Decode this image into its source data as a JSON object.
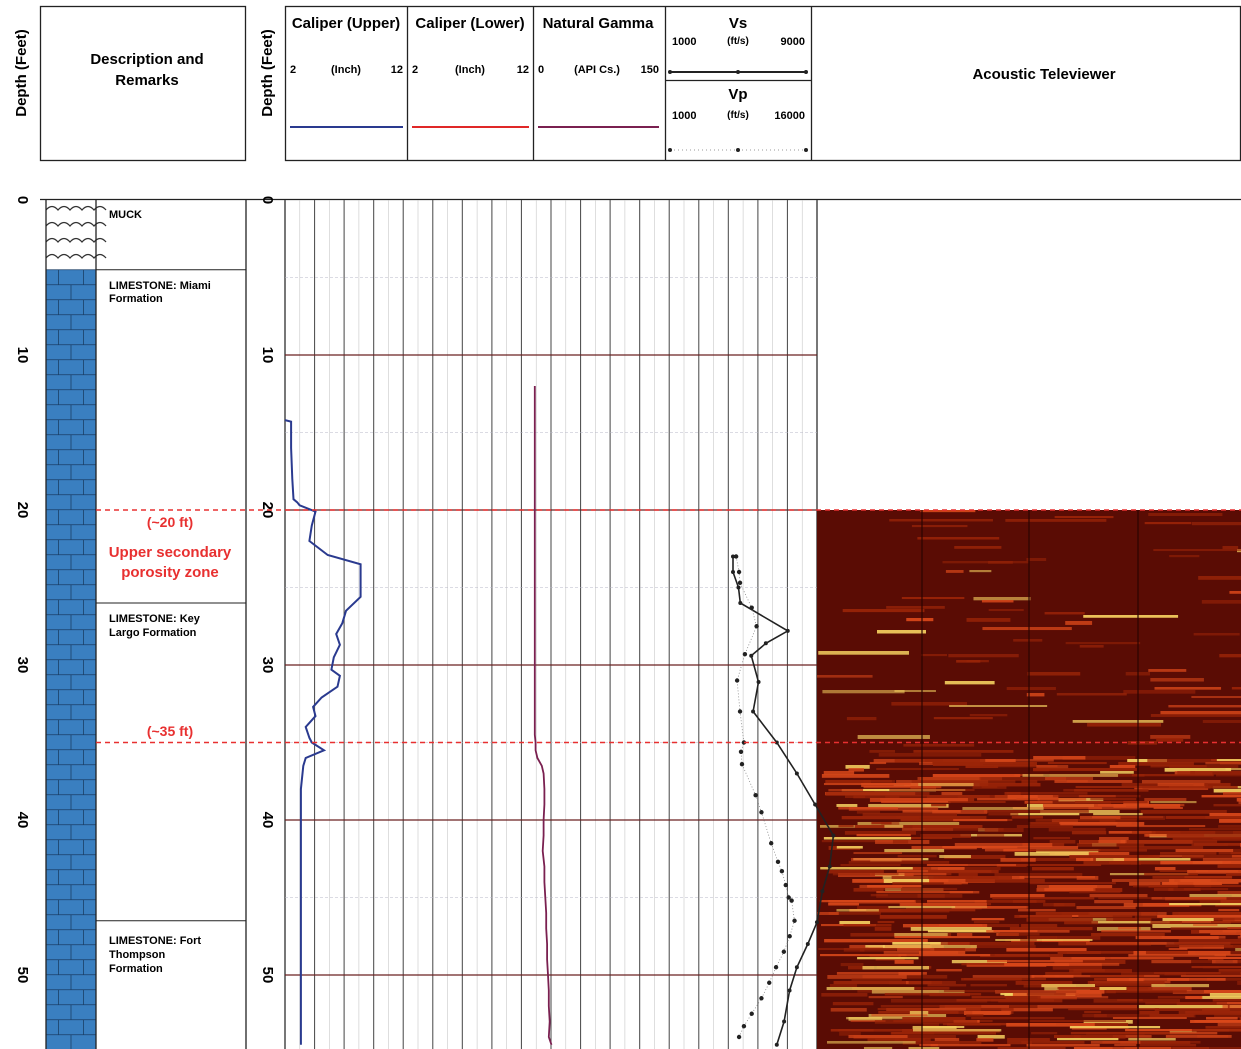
{
  "header": {
    "depth_label_left": "Depth (Feet)",
    "description_label_line1": "Description and",
    "description_label_line2": "Remarks",
    "depth_label_right": "Depth (Feet)",
    "caliper_upper": {
      "title": "Caliper (Upper)",
      "min": "2",
      "unit": "(Inch)",
      "max": "12"
    },
    "caliper_lower": {
      "title": "Caliper (Lower)",
      "min": "2",
      "unit": "(Inch)",
      "max": "12"
    },
    "natural_gamma": {
      "title": "Natural Gamma",
      "min": "0",
      "unit": "(API Cs.)",
      "max": "150"
    },
    "vs": {
      "title": "Vs",
      "min": "1000",
      "unit": "(ft/s)",
      "max": "9000"
    },
    "vp": {
      "title": "Vp",
      "min": "1000",
      "unit": "(ft/s)",
      "max": "16000"
    },
    "televiewer_title": "Acoustic Televiewer"
  },
  "lithology": {
    "muck": "MUCK",
    "miami_line1": "LIMESTONE: Miami",
    "miami_line2": "Formation",
    "keylargo_line1": "LIMESTONE: Key",
    "keylargo_line2": "Largo Formation",
    "fort_line1": "LIMESTONE: Fort",
    "fort_line2": "Thompson",
    "fort_line3": "Formation",
    "marker20": "(~20 ft)",
    "zone_line1": "Upper secondary",
    "zone_line2": "porosity zone",
    "marker35": "(~35 ft)"
  },
  "depth_ticks": [
    "0",
    "10",
    "20",
    "30",
    "40",
    "50"
  ],
  "colors": {
    "caliper_upper": "#2a3a8f",
    "caliper_lower": "#e02828",
    "gamma": "#7a2050",
    "velocity": "#222222",
    "marker": "#e83030",
    "limestone": "#3a7fc0",
    "televiewer_bg": "#5a0c04"
  },
  "chart_data": {
    "type": "line",
    "y_axis": {
      "label": "Depth (Feet)",
      "range": [
        0,
        54.5
      ],
      "ticks": [
        0,
        10,
        20,
        30,
        40,
        50
      ]
    },
    "markers": [
      20,
      35
    ],
    "lithology_units": [
      {
        "name": "MUCK",
        "top": 0,
        "bottom": 4.5
      },
      {
        "name": "LIMESTONE: Miami Formation",
        "top": 4.5,
        "bottom": 26
      },
      {
        "name": "LIMESTONE: Key Largo Formation",
        "top": 26,
        "bottom": 46.5
      },
      {
        "name": "LIMESTONE: Fort Thompson Formation",
        "top": 46.5,
        "bottom": 54.5
      }
    ],
    "series": [
      {
        "name": "Caliper (Upper)",
        "unit": "Inch",
        "range": [
          2,
          12
        ],
        "x": [
          2.0,
          2.5,
          2.5,
          2.6,
          2.7,
          3.0,
          3.2,
          4.5,
          4.2,
          4.0,
          5.5,
          8.2,
          8.2,
          7.0,
          6.7,
          6.2,
          6.5,
          6.0,
          5.8,
          6.5,
          6.3,
          5.0,
          4.3,
          4.5,
          3.7,
          4.0,
          4.2,
          5.2,
          3.7,
          3.5,
          3.3,
          3.3,
          3.3,
          3.3,
          3.3,
          3.3,
          3.3,
          3.3
        ],
        "depth": [
          14.2,
          14.3,
          16.0,
          18.0,
          19.3,
          19.5,
          19.7,
          20.1,
          21.0,
          22.0,
          22.9,
          23.5,
          25.6,
          26.5,
          27.3,
          28.0,
          28.7,
          29.5,
          30.3,
          30.7,
          31.4,
          32.1,
          32.7,
          33.3,
          34.0,
          34.7,
          35.0,
          35.5,
          36.0,
          36.5,
          38.0,
          40.0,
          42.0,
          44.0,
          46.0,
          48.0,
          50.0,
          54.5
        ]
      },
      {
        "name": "Natural Gamma",
        "unit": "API Cs.",
        "range": [
          0,
          150
        ],
        "x": [
          2,
          2,
          2,
          3,
          3,
          5,
          10,
          12,
          13,
          13,
          12,
          12,
          11,
          13,
          13,
          14,
          15,
          15,
          16,
          16,
          17,
          18,
          18,
          19,
          18,
          19,
          19,
          19,
          19,
          19,
          20,
          21,
          21,
          21
        ],
        "depth": [
          12,
          34,
          34.5,
          35,
          35.5,
          36,
          36.5,
          37,
          38,
          39,
          40,
          41,
          42,
          43,
          44,
          45,
          46,
          47,
          48,
          49,
          50,
          51,
          52,
          53,
          54,
          55,
          56,
          57,
          58,
          59,
          60,
          61,
          62,
          54.5
        ]
      },
      {
        "name": "Vs",
        "unit": "ft/s",
        "range": [
          1000,
          9000
        ],
        "x": [
          1000,
          1000,
          1300,
          1400,
          4000,
          2800,
          2000,
          2400,
          2100,
          3400,
          4500,
          5500,
          6500,
          6300,
          5900,
          5600,
          5100,
          4500,
          4100,
          3800,
          3400
        ],
        "depth": [
          23,
          24,
          25,
          26,
          27.8,
          28.6,
          29.4,
          31.1,
          33,
          35,
          37,
          39,
          41,
          43,
          44.6,
          46.6,
          48,
          49.5,
          51,
          53,
          54.5
        ]
      }
    ],
    "points": [
      {
        "name": "Vp",
        "unit": "ft/s",
        "range": [
          1000,
          16000
        ],
        "x": [
          4200,
          4500,
          4600,
          5800,
          6300,
          5100,
          4300,
          4600,
          5000,
          4700,
          4800,
          6200,
          6800,
          7800,
          8500,
          8900,
          9300,
          9600,
          9900,
          10200,
          9700,
          9100,
          8300,
          7600,
          6800,
          5800,
          5000,
          4500
        ],
        "depth": [
          23,
          24,
          24.7,
          26.3,
          27.5,
          29.3,
          31,
          33,
          35,
          35.6,
          36.4,
          38.4,
          39.5,
          41.5,
          42.7,
          43.3,
          44.2,
          45,
          45.2,
          46.5,
          47.5,
          48.5,
          49.5,
          50.5,
          51.5,
          52.5,
          53.3,
          54
        ]
      }
    ],
    "televiewer_top_depth": 20
  }
}
